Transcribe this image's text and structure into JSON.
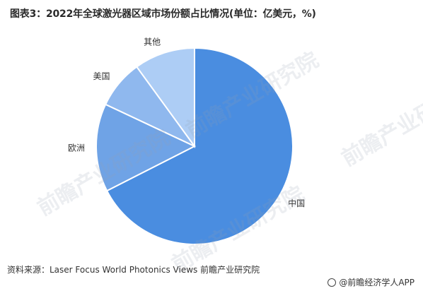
{
  "title": "图表3：2022年全球激光器区域市场份额占比情况(单位：亿美元，%)",
  "source": "资料来源：Laser Focus World Photonics Views 前瞻产业研究院",
  "footer_brand": "@前瞻经济学人APP",
  "watermark_text": "前瞻产业研究院",
  "chart_data": {
    "type": "pie",
    "title": "图表3：2022年全球激光器区域市场份额占比情况(单位：亿美元，%)",
    "start": "12 o'clock, clockwise",
    "slices": [
      {
        "label": "中国",
        "value": 67.5,
        "color": "#4a8de0"
      },
      {
        "label": "欧洲",
        "value": 14.5,
        "color": "#6fa3e6"
      },
      {
        "label": "美国",
        "value": 8.0,
        "color": "#8fb8ee"
      },
      {
        "label": "其他",
        "value": 10.0,
        "color": "#adcdf5"
      }
    ]
  }
}
